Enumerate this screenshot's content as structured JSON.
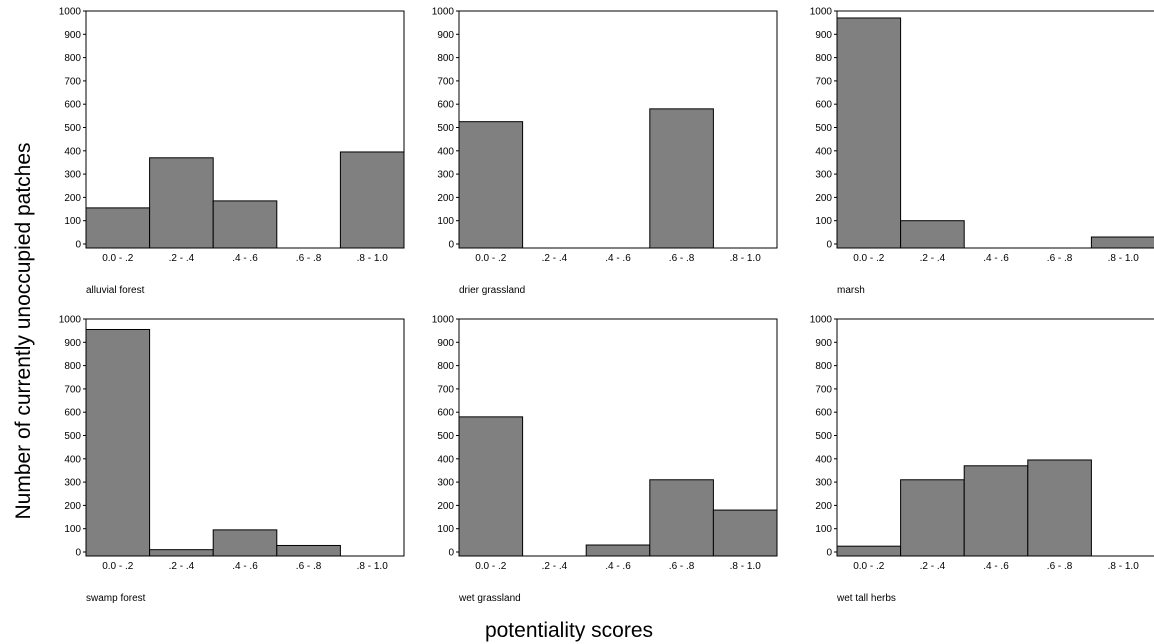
{
  "figure": {
    "ylabel": "Number of currently unoccupied patches",
    "xlabel": "potentiality scores"
  },
  "colors": {
    "bar_fill": "#808080",
    "bar_stroke": "#000000",
    "axis": "#000000"
  },
  "chart_data": [
    {
      "type": "bar",
      "title": "alluvial forest",
      "categories": [
        "0.0 - .2",
        ".2 - .4",
        ".4 - .6",
        ".6 - .8",
        ".8 - 1.0"
      ],
      "values": [
        155,
        370,
        185,
        0,
        395
      ],
      "ylim": [
        0,
        1000
      ],
      "yticks": [
        0,
        100,
        200,
        300,
        400,
        500,
        600,
        700,
        800,
        900,
        1000
      ],
      "grid": false
    },
    {
      "type": "bar",
      "title": "drier grassland",
      "categories": [
        "0.0 - .2",
        ".2 - .4",
        ".4 - .6",
        ".6 - .8",
        ".8 - 1.0"
      ],
      "values": [
        525,
        0,
        0,
        580,
        0
      ],
      "ylim": [
        0,
        1000
      ],
      "yticks": [
        0,
        100,
        200,
        300,
        400,
        500,
        600,
        700,
        800,
        900,
        1000
      ],
      "grid": false
    },
    {
      "type": "bar",
      "title": "marsh",
      "categories": [
        "0.0 - .2",
        ".2 - .4",
        ".4 - .6",
        ".6 - .8",
        ".8 - 1.0"
      ],
      "values": [
        970,
        100,
        0,
        0,
        30
      ],
      "ylim": [
        0,
        1000
      ],
      "yticks": [
        0,
        100,
        200,
        300,
        400,
        500,
        600,
        700,
        800,
        900,
        1000
      ],
      "grid": false
    },
    {
      "type": "bar",
      "title": "swamp forest",
      "categories": [
        "0.0 - .2",
        ".2 - .4",
        ".4 - .6",
        ".6 - .8",
        ".8 - 1.0"
      ],
      "values": [
        955,
        10,
        95,
        28,
        0
      ],
      "ylim": [
        0,
        1000
      ],
      "yticks": [
        0,
        100,
        200,
        300,
        400,
        500,
        600,
        700,
        800,
        900,
        1000
      ],
      "grid": false
    },
    {
      "type": "bar",
      "title": "wet grassland",
      "categories": [
        "0.0 - .2",
        ".2 - .4",
        ".4 - .6",
        ".6 - .8",
        ".8 - 1.0"
      ],
      "values": [
        580,
        0,
        30,
        310,
        180
      ],
      "ylim": [
        0,
        1000
      ],
      "yticks": [
        0,
        100,
        200,
        300,
        400,
        500,
        600,
        700,
        800,
        900,
        1000
      ],
      "grid": false
    },
    {
      "type": "bar",
      "title": "wet tall herbs",
      "categories": [
        "0.0 - .2",
        ".2 - .4",
        ".4 - .6",
        ".6 - .8",
        ".8 - 1.0"
      ],
      "values": [
        25,
        310,
        370,
        395,
        0
      ],
      "ylim": [
        0,
        1000
      ],
      "yticks": [
        0,
        100,
        200,
        300,
        400,
        500,
        600,
        700,
        800,
        900,
        1000
      ],
      "grid": false
    }
  ]
}
